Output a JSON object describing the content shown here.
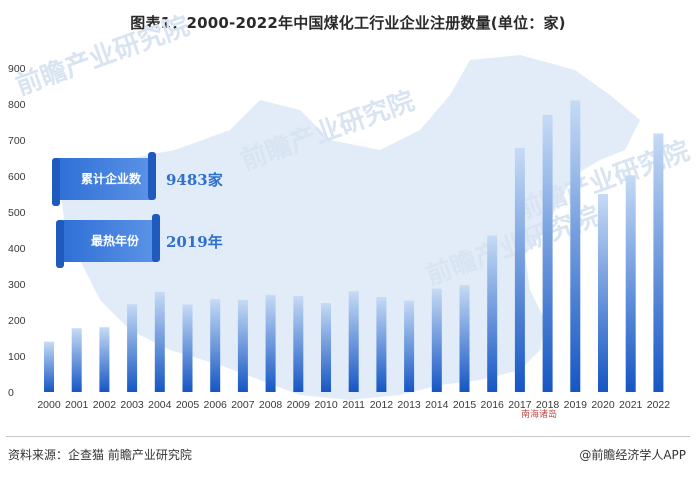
{
  "title": "图表1：2000-2022年中国煤化工行业企业注册数量(单位：家)",
  "banners": [
    {
      "label": "累计企业数",
      "value": "9483家"
    },
    {
      "label": "最热年份",
      "value": "2019年"
    }
  ],
  "footer": {
    "source": "资料来源：企查猫 前瞻产业研究院",
    "brand": "@前瞻经济学人APP"
  },
  "watermark": "前瞻产业研究院",
  "map_label": "南海诸岛",
  "colors": {
    "bar_top": "#c6dbf5",
    "bar_bottom": "#1556c4",
    "accent": "#2f6fcf"
  },
  "chart_data": {
    "type": "bar",
    "categories": [
      "2000",
      "2001",
      "2002",
      "2003",
      "2004",
      "2005",
      "2006",
      "2007",
      "2008",
      "2009",
      "2010",
      "2011",
      "2012",
      "2013",
      "2014",
      "2015",
      "2016",
      "2017",
      "2018",
      "2019",
      "2020",
      "2021",
      "2022"
    ],
    "values": [
      140,
      177,
      180,
      244,
      278,
      243,
      258,
      256,
      270,
      267,
      247,
      280,
      264,
      254,
      287,
      297,
      435,
      678,
      770,
      810,
      550,
      602,
      718
    ],
    "ylim": [
      0,
      900
    ],
    "yticks": [
      0,
      100,
      200,
      300,
      400,
      500,
      600,
      700,
      800,
      900
    ],
    "xlabel": "",
    "ylabel": "",
    "grid": false
  }
}
